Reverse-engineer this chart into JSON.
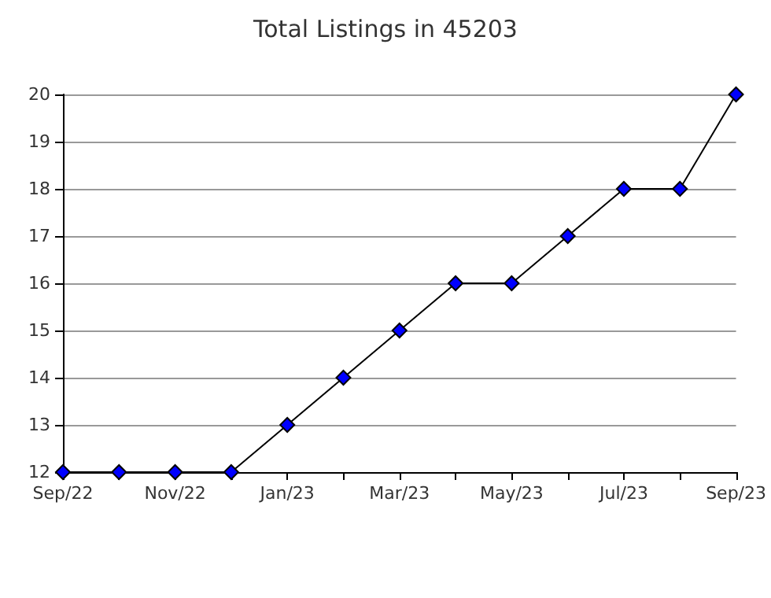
{
  "chart_data": {
    "type": "line",
    "title": "Total Listings in 45203",
    "categories": [
      "Sep/22",
      null,
      "Nov/22",
      null,
      "Jan/23",
      null,
      "Mar/23",
      null,
      "May/23",
      null,
      "Jul/23",
      null,
      "Sep/23"
    ],
    "series": [
      {
        "color": "#0000ff",
        "values": [
          12,
          12,
          12,
          12,
          13,
          14,
          15,
          16,
          16,
          17,
          18,
          18,
          20
        ]
      }
    ],
    "ylim": [
      12,
      20
    ],
    "yticks": [
      12,
      13,
      14,
      15,
      16,
      17,
      18,
      19,
      20
    ],
    "grid": "y",
    "marker": "diamond",
    "line_style": "solid"
  }
}
